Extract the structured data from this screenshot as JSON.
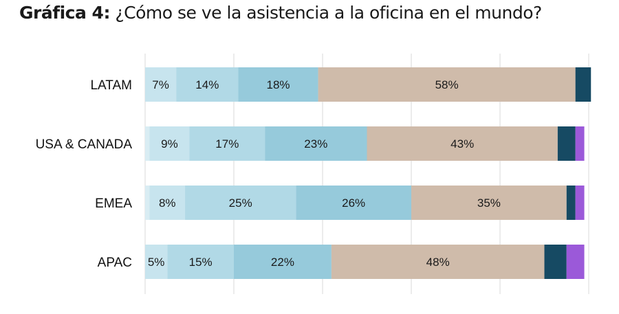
{
  "title": {
    "prefix": "Gráfica 4:",
    "text": "¿Cómo se ve la asistencia a la oficina en el mundo?"
  },
  "chart_data": {
    "type": "bar",
    "orientation": "horizontal",
    "stacked": true,
    "categories": [
      "LATAM",
      "USA & CANADA",
      "EMEA",
      "APAC"
    ],
    "series": [
      {
        "values": [
          0,
          1,
          1,
          0
        ],
        "color": "#d9edf3"
      },
      {
        "values": [
          7,
          9,
          8,
          5
        ],
        "color": "#c7e4ee"
      },
      {
        "values": [
          14,
          17,
          25,
          15
        ],
        "color": "#b1d9e6"
      },
      {
        "values": [
          18,
          23,
          26,
          22
        ],
        "color": "#96cadb"
      },
      {
        "values": [
          58,
          43,
          35,
          48
        ],
        "color": "#cfbbaa"
      },
      {
        "values": [
          3.5,
          4,
          2,
          5
        ],
        "color": "#164a63"
      },
      {
        "values": [
          0,
          2,
          2,
          4
        ],
        "color": "#9b59d9"
      }
    ],
    "data_labels": [
      [
        "",
        "7%",
        "14%",
        "18%",
        "58%",
        "",
        ""
      ],
      [
        "",
        "9%",
        "17%",
        "23%",
        "43%",
        "",
        ""
      ],
      [
        "",
        "8%",
        "25%",
        "26%",
        "35%",
        "",
        ""
      ],
      [
        "",
        "5%",
        "15%",
        "22%",
        "48%",
        "",
        ""
      ]
    ],
    "xlim": [
      0,
      100
    ],
    "grid": true,
    "legend": "none"
  }
}
